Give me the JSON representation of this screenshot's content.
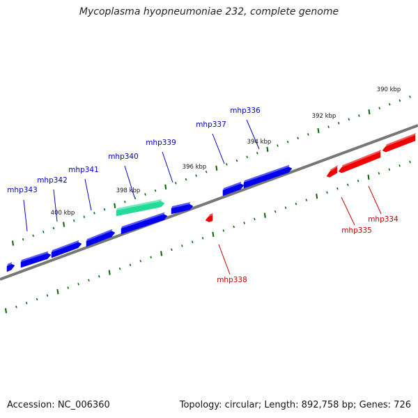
{
  "title": "Mycoplasma hyopneumoniae 232, complete genome",
  "footer": {
    "accession": "Accession: NC_006360",
    "stats": "Topology: circular; Length: 892,758 bp; Genes: 726"
  },
  "colors": {
    "forward_gene": "#0000ee",
    "reverse_gene": "#ee0000",
    "highlight_gene": "#22dd99",
    "backbone": "#777777",
    "tick": "#006600",
    "forward_label": "#0000cc",
    "reverse_label": "#cc0000"
  },
  "scale_labels": [
    "400 kbp",
    "398 kbp",
    "396 kbp",
    "394 kbp",
    "392 kbp",
    "390 kbp"
  ],
  "genes": [
    {
      "name": "mhp343",
      "strand": "forward"
    },
    {
      "name": "mhp342",
      "strand": "forward"
    },
    {
      "name": "mhp341",
      "strand": "forward"
    },
    {
      "name": "mhp340",
      "strand": "forward",
      "highlighted": true
    },
    {
      "name": "mhp339",
      "strand": "forward"
    },
    {
      "name": "mhp338",
      "strand": "reverse"
    },
    {
      "name": "mhp337",
      "strand": "forward"
    },
    {
      "name": "mhp336",
      "strand": "forward"
    },
    {
      "name": "mhp335",
      "strand": "reverse"
    },
    {
      "name": "mhp334",
      "strand": "reverse"
    }
  ]
}
